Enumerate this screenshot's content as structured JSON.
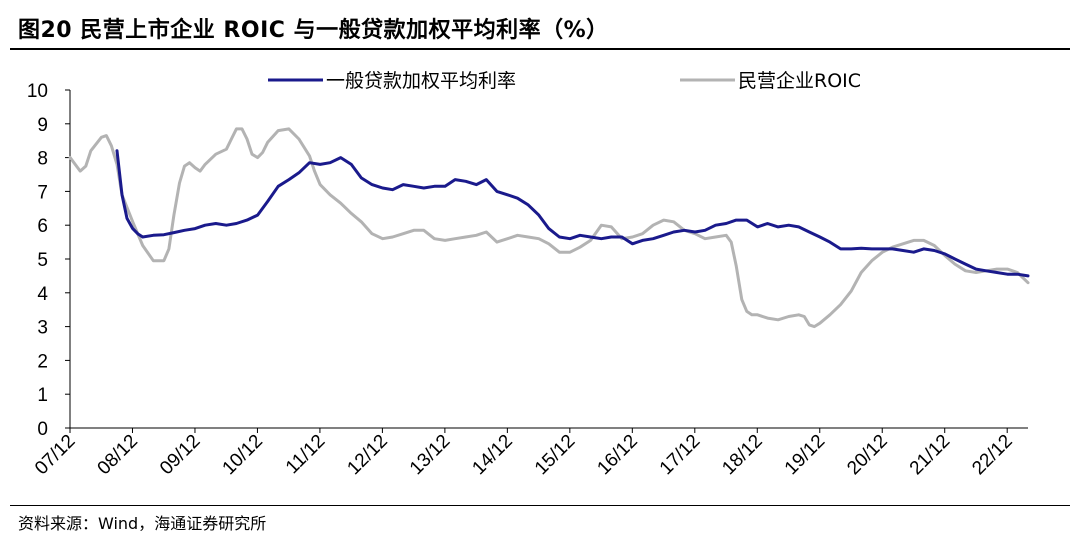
{
  "title": "图20 民营上市企业 ROIC 与一般贷款加权平均利率（%）",
  "source": "资料来源：Wind，海通证券研究所",
  "colors": {
    "loan_rate": "#1a1a8c",
    "roic": "#b3b3b3",
    "axis": "#000000"
  },
  "chart_data": {
    "type": "line",
    "title": "民营上市企业 ROIC 与一般贷款加权平均利率（%）",
    "xlabel": "",
    "ylabel": "",
    "ylim": [
      0,
      10
    ],
    "yticks": [
      0,
      1,
      2,
      3,
      4,
      5,
      6,
      7,
      8,
      9,
      10
    ],
    "x_range": [
      2007.917,
      2023.25
    ],
    "xtick_labels": [
      "07/12",
      "08/12",
      "09/12",
      "10/12",
      "11/12",
      "12/12",
      "13/12",
      "14/12",
      "15/12",
      "16/12",
      "17/12",
      "18/12",
      "19/12",
      "20/12",
      "21/12",
      "22/12"
    ],
    "legend_position": "top",
    "series": [
      {
        "name": "一般贷款加权平均利率",
        "color_key": "loan_rate",
        "points": [
          [
            2008.67,
            8.2
          ],
          [
            2008.75,
            6.9
          ],
          [
            2008.83,
            6.2
          ],
          [
            2008.92,
            5.9
          ],
          [
            2009.0,
            5.75
          ],
          [
            2009.08,
            5.65
          ],
          [
            2009.25,
            5.7
          ],
          [
            2009.42,
            5.72
          ],
          [
            2009.58,
            5.78
          ],
          [
            2009.75,
            5.85
          ],
          [
            2009.92,
            5.9
          ],
          [
            2010.08,
            6.0
          ],
          [
            2010.25,
            6.05
          ],
          [
            2010.42,
            6.0
          ],
          [
            2010.58,
            6.05
          ],
          [
            2010.75,
            6.15
          ],
          [
            2010.92,
            6.3
          ],
          [
            2011.08,
            6.7
          ],
          [
            2011.25,
            7.15
          ],
          [
            2011.42,
            7.35
          ],
          [
            2011.58,
            7.55
          ],
          [
            2011.75,
            7.85
          ],
          [
            2011.92,
            7.8
          ],
          [
            2012.08,
            7.85
          ],
          [
            2012.25,
            8.0
          ],
          [
            2012.42,
            7.8
          ],
          [
            2012.58,
            7.4
          ],
          [
            2012.75,
            7.2
          ],
          [
            2012.92,
            7.1
          ],
          [
            2013.08,
            7.05
          ],
          [
            2013.25,
            7.2
          ],
          [
            2013.42,
            7.15
          ],
          [
            2013.58,
            7.1
          ],
          [
            2013.75,
            7.15
          ],
          [
            2013.92,
            7.15
          ],
          [
            2014.08,
            7.35
          ],
          [
            2014.25,
            7.3
          ],
          [
            2014.42,
            7.2
          ],
          [
            2014.58,
            7.35
          ],
          [
            2014.75,
            7.0
          ],
          [
            2014.92,
            6.9
          ],
          [
            2015.08,
            6.8
          ],
          [
            2015.25,
            6.6
          ],
          [
            2015.42,
            6.3
          ],
          [
            2015.58,
            5.9
          ],
          [
            2015.75,
            5.65
          ],
          [
            2015.92,
            5.6
          ],
          [
            2016.08,
            5.7
          ],
          [
            2016.25,
            5.65
          ],
          [
            2016.42,
            5.6
          ],
          [
            2016.58,
            5.65
          ],
          [
            2016.75,
            5.65
          ],
          [
            2016.92,
            5.45
          ],
          [
            2017.08,
            5.55
          ],
          [
            2017.25,
            5.6
          ],
          [
            2017.42,
            5.7
          ],
          [
            2017.58,
            5.8
          ],
          [
            2017.75,
            5.85
          ],
          [
            2017.92,
            5.8
          ],
          [
            2018.08,
            5.85
          ],
          [
            2018.25,
            6.0
          ],
          [
            2018.42,
            6.05
          ],
          [
            2018.58,
            6.15
          ],
          [
            2018.75,
            6.15
          ],
          [
            2018.92,
            5.95
          ],
          [
            2019.08,
            6.05
          ],
          [
            2019.25,
            5.95
          ],
          [
            2019.42,
            6.0
          ],
          [
            2019.58,
            5.95
          ],
          [
            2019.75,
            5.8
          ],
          [
            2019.92,
            5.65
          ],
          [
            2020.08,
            5.5
          ],
          [
            2020.25,
            5.3
          ],
          [
            2020.42,
            5.3
          ],
          [
            2020.58,
            5.32
          ],
          [
            2020.75,
            5.3
          ],
          [
            2020.92,
            5.3
          ],
          [
            2021.08,
            5.3
          ],
          [
            2021.25,
            5.25
          ],
          [
            2021.42,
            5.2
          ],
          [
            2021.58,
            5.3
          ],
          [
            2021.75,
            5.25
          ],
          [
            2021.92,
            5.15
          ],
          [
            2022.08,
            5.0
          ],
          [
            2022.25,
            4.85
          ],
          [
            2022.42,
            4.7
          ],
          [
            2022.58,
            4.65
          ],
          [
            2022.75,
            4.6
          ],
          [
            2022.92,
            4.55
          ],
          [
            2023.08,
            4.55
          ],
          [
            2023.25,
            4.5
          ]
        ]
      },
      {
        "name": "民营企业ROIC",
        "color_key": "roic",
        "points": [
          [
            2007.92,
            8.0
          ],
          [
            2008.0,
            7.8
          ],
          [
            2008.08,
            7.6
          ],
          [
            2008.17,
            7.75
          ],
          [
            2008.25,
            8.2
          ],
          [
            2008.42,
            8.6
          ],
          [
            2008.5,
            8.65
          ],
          [
            2008.58,
            8.35
          ],
          [
            2008.67,
            7.8
          ],
          [
            2008.75,
            6.9
          ],
          [
            2008.92,
            6.1
          ],
          [
            2009.08,
            5.4
          ],
          [
            2009.25,
            4.95
          ],
          [
            2009.42,
            4.95
          ],
          [
            2009.5,
            5.3
          ],
          [
            2009.58,
            6.3
          ],
          [
            2009.67,
            7.25
          ],
          [
            2009.75,
            7.75
          ],
          [
            2009.83,
            7.85
          ],
          [
            2009.92,
            7.7
          ],
          [
            2010.0,
            7.6
          ],
          [
            2010.08,
            7.8
          ],
          [
            2010.25,
            8.1
          ],
          [
            2010.42,
            8.25
          ],
          [
            2010.5,
            8.55
          ],
          [
            2010.58,
            8.85
          ],
          [
            2010.67,
            8.85
          ],
          [
            2010.75,
            8.55
          ],
          [
            2010.83,
            8.1
          ],
          [
            2010.92,
            8.0
          ],
          [
            2011.0,
            8.15
          ],
          [
            2011.08,
            8.45
          ],
          [
            2011.25,
            8.8
          ],
          [
            2011.42,
            8.85
          ],
          [
            2011.58,
            8.55
          ],
          [
            2011.75,
            8.05
          ],
          [
            2011.83,
            7.6
          ],
          [
            2011.92,
            7.2
          ],
          [
            2012.08,
            6.9
          ],
          [
            2012.25,
            6.65
          ],
          [
            2012.42,
            6.35
          ],
          [
            2012.58,
            6.1
          ],
          [
            2012.75,
            5.75
          ],
          [
            2012.92,
            5.6
          ],
          [
            2013.08,
            5.65
          ],
          [
            2013.25,
            5.75
          ],
          [
            2013.42,
            5.85
          ],
          [
            2013.58,
            5.85
          ],
          [
            2013.75,
            5.6
          ],
          [
            2013.92,
            5.55
          ],
          [
            2014.08,
            5.6
          ],
          [
            2014.25,
            5.65
          ],
          [
            2014.42,
            5.7
          ],
          [
            2014.58,
            5.8
          ],
          [
            2014.75,
            5.5
          ],
          [
            2014.92,
            5.6
          ],
          [
            2015.08,
            5.7
          ],
          [
            2015.25,
            5.65
          ],
          [
            2015.42,
            5.6
          ],
          [
            2015.58,
            5.45
          ],
          [
            2015.75,
            5.2
          ],
          [
            2015.92,
            5.2
          ],
          [
            2016.08,
            5.35
          ],
          [
            2016.25,
            5.55
          ],
          [
            2016.42,
            6.0
          ],
          [
            2016.58,
            5.95
          ],
          [
            2016.75,
            5.6
          ],
          [
            2016.92,
            5.65
          ],
          [
            2017.08,
            5.75
          ],
          [
            2017.25,
            6.0
          ],
          [
            2017.42,
            6.15
          ],
          [
            2017.58,
            6.1
          ],
          [
            2017.75,
            5.85
          ],
          [
            2017.92,
            5.75
          ],
          [
            2018.08,
            5.6
          ],
          [
            2018.25,
            5.65
          ],
          [
            2018.42,
            5.7
          ],
          [
            2018.5,
            5.5
          ],
          [
            2018.58,
            4.8
          ],
          [
            2018.67,
            3.8
          ],
          [
            2018.75,
            3.45
          ],
          [
            2018.83,
            3.35
          ],
          [
            2018.92,
            3.35
          ],
          [
            2019.08,
            3.25
          ],
          [
            2019.25,
            3.2
          ],
          [
            2019.42,
            3.3
          ],
          [
            2019.58,
            3.35
          ],
          [
            2019.67,
            3.3
          ],
          [
            2019.75,
            3.05
          ],
          [
            2019.83,
            3.0
          ],
          [
            2019.92,
            3.1
          ],
          [
            2020.08,
            3.35
          ],
          [
            2020.25,
            3.65
          ],
          [
            2020.42,
            4.05
          ],
          [
            2020.58,
            4.6
          ],
          [
            2020.75,
            4.95
          ],
          [
            2020.92,
            5.2
          ],
          [
            2021.08,
            5.35
          ],
          [
            2021.25,
            5.45
          ],
          [
            2021.42,
            5.55
          ],
          [
            2021.58,
            5.55
          ],
          [
            2021.75,
            5.4
          ],
          [
            2021.92,
            5.1
          ],
          [
            2022.08,
            4.85
          ],
          [
            2022.25,
            4.65
          ],
          [
            2022.42,
            4.6
          ],
          [
            2022.58,
            4.65
          ],
          [
            2022.75,
            4.7
          ],
          [
            2022.92,
            4.7
          ],
          [
            2023.08,
            4.6
          ],
          [
            2023.25,
            4.3
          ]
        ]
      }
    ]
  }
}
